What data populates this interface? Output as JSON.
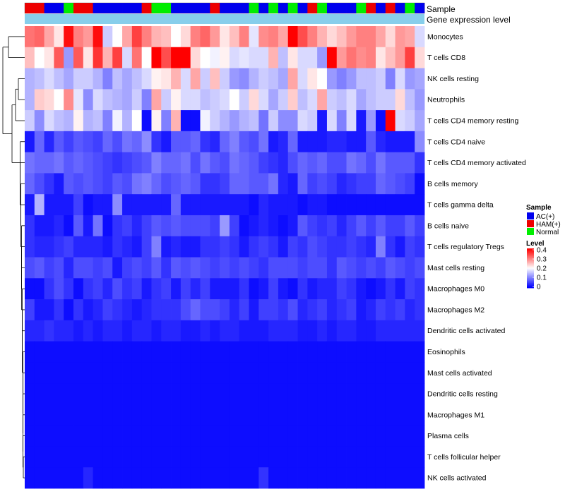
{
  "chart_data": {
    "type": "heatmap",
    "title": "",
    "annotations": {
      "sample_label": "Sample",
      "expression_label": "Gene expression level",
      "sample_groups": [
        "HAM(+)",
        "HAM(+)",
        "AC(+)",
        "AC(+)",
        "Normal",
        "HAM(+)",
        "HAM(+)",
        "AC(+)",
        "AC(+)",
        "AC(+)",
        "AC(+)",
        "AC(+)",
        "HAM(+)",
        "Normal",
        "Normal",
        "AC(+)",
        "AC(+)",
        "AC(+)",
        "AC(+)",
        "HAM(+)",
        "AC(+)",
        "AC(+)",
        "AC(+)",
        "Normal",
        "AC(+)",
        "Normal",
        "AC(+)",
        "Normal",
        "AC(+)",
        "HAM(+)",
        "Normal",
        "AC(+)",
        "AC(+)",
        "AC(+)",
        "Normal",
        "HAM(+)",
        "AC(+)",
        "HAM(+)",
        "AC(+)",
        "Normal",
        "AC(+)"
      ]
    },
    "rows": [
      "Monocytes",
      "T cells CD8",
      "NK cells resting",
      "Neutrophils",
      "T cells CD4 memory resting",
      "T cells CD4 naive",
      "T cells CD4 memory activated",
      "B cells memory",
      "T cells gamma delta",
      "B cells naive",
      "T cells regulatory  Tregs",
      "Mast cells resting",
      "Macrophages M0",
      "Macrophages M2",
      "Dendritic cells activated",
      "Eosinophils",
      "Mast cells activated",
      "Dendritic cells resting",
      "Macrophages M1",
      "Plasma cells",
      "T cells follicular helper",
      "NK cells activated"
    ],
    "values": [
      [
        0.31,
        0.32,
        0.27,
        0.22,
        0.39,
        0.3,
        0.28,
        0.39,
        0.16,
        0.2,
        0.27,
        0.35,
        0.3,
        0.26,
        0.25,
        0.2,
        0.23,
        0.3,
        0.32,
        0.28,
        0.22,
        0.25,
        0.3,
        0.18,
        0.29,
        0.3,
        0.27,
        0.4,
        0.34,
        0.3,
        0.26,
        0.23,
        0.25,
        0.28,
        0.3,
        0.3,
        0.27,
        0.23,
        0.28,
        0.27,
        0.17
      ],
      [
        0.25,
        0.2,
        0.22,
        0.33,
        0.12,
        0.33,
        0.22,
        0.36,
        0.26,
        0.35,
        0.17,
        0.31,
        0.2,
        0.4,
        0.34,
        0.41,
        0.41,
        0.23,
        0.2,
        0.19,
        0.21,
        0.17,
        0.18,
        0.17,
        0.17,
        0.26,
        0.15,
        0.22,
        0.17,
        0.17,
        0.12,
        0.4,
        0.28,
        0.31,
        0.29,
        0.3,
        0.22,
        0.25,
        0.28,
        0.35,
        0.23
      ],
      [
        0.14,
        0.15,
        0.17,
        0.15,
        0.13,
        0.16,
        0.16,
        0.14,
        0.1,
        0.15,
        0.13,
        0.15,
        0.17,
        0.21,
        0.22,
        0.26,
        0.17,
        0.27,
        0.16,
        0.25,
        0.16,
        0.12,
        0.11,
        0.14,
        0.16,
        0.15,
        0.13,
        0.27,
        0.17,
        0.22,
        0.2,
        0.12,
        0.1,
        0.12,
        0.15,
        0.15,
        0.16,
        0.1,
        0.17,
        0.12,
        0.13
      ],
      [
        0.14,
        0.24,
        0.23,
        0.2,
        0.29,
        0.18,
        0.11,
        0.17,
        0.15,
        0.14,
        0.13,
        0.16,
        0.1,
        0.27,
        0.16,
        0.21,
        0.17,
        0.17,
        0.15,
        0.16,
        0.17,
        0.2,
        0.16,
        0.23,
        0.17,
        0.13,
        0.16,
        0.24,
        0.15,
        0.17,
        0.27,
        0.16,
        0.15,
        0.17,
        0.13,
        0.15,
        0.16,
        0.16,
        0.23,
        0.15,
        0.12
      ],
      [
        0.16,
        0.11,
        0.17,
        0.15,
        0.14,
        0.21,
        0.14,
        0.15,
        0.1,
        0.19,
        0.14,
        0.2,
        0.01,
        0.21,
        0.1,
        0.26,
        0.01,
        0.01,
        0.19,
        0.16,
        0.14,
        0.12,
        0.14,
        0.15,
        0.09,
        0.16,
        0.11,
        0.11,
        0.17,
        0.16,
        0.02,
        0.17,
        0.1,
        0.17,
        0.02,
        0.12,
        0.01,
        0.4,
        0.17,
        0.16,
        0.13
      ],
      [
        0.02,
        0.08,
        0.03,
        0.07,
        0.05,
        0.07,
        0.06,
        0.05,
        0.08,
        0.06,
        0.09,
        0.08,
        0.11,
        0.04,
        0.02,
        0.07,
        0.07,
        0.08,
        0.04,
        0.03,
        0.08,
        0.1,
        0.07,
        0.06,
        0.09,
        0.02,
        0.03,
        0.08,
        0.02,
        0.02,
        0.02,
        0.03,
        0.03,
        0.02,
        0.02,
        0.07,
        0.03,
        0.02,
        0.02,
        0.02,
        0.11
      ],
      [
        0.09,
        0.08,
        0.08,
        0.09,
        0.07,
        0.08,
        0.07,
        0.06,
        0.05,
        0.04,
        0.05,
        0.06,
        0.07,
        0.1,
        0.08,
        0.08,
        0.09,
        0.06,
        0.09,
        0.07,
        0.06,
        0.09,
        0.08,
        0.07,
        0.05,
        0.04,
        0.03,
        0.06,
        0.08,
        0.07,
        0.08,
        0.06,
        0.06,
        0.09,
        0.08,
        0.06,
        0.09,
        0.07,
        0.07,
        0.07,
        0.04
      ],
      [
        0.08,
        0.06,
        0.04,
        0.02,
        0.07,
        0.06,
        0.07,
        0.06,
        0.05,
        0.07,
        0.06,
        0.09,
        0.1,
        0.08,
        0.06,
        0.07,
        0.08,
        0.07,
        0.04,
        0.04,
        0.05,
        0.08,
        0.08,
        0.07,
        0.07,
        0.09,
        0.03,
        0.02,
        0.08,
        0.05,
        0.06,
        0.05,
        0.03,
        0.04,
        0.05,
        0.05,
        0.08,
        0.07,
        0.06,
        0.05,
        0.01
      ],
      [
        0.02,
        0.14,
        0.02,
        0.02,
        0.02,
        0.05,
        0.01,
        0.02,
        0.02,
        0.11,
        0.02,
        0.02,
        0.02,
        0.02,
        0.02,
        0.08,
        0.02,
        0.02,
        0.02,
        0.02,
        0.02,
        0.02,
        0.02,
        0.01,
        0.03,
        0.02,
        0.02,
        0.02,
        0.01,
        0.02,
        0.02,
        0.01,
        0.01,
        0.01,
        0.01,
        0.01,
        0.01,
        0.01,
        0.01,
        0.01,
        0.01
      ],
      [
        0.04,
        0.02,
        0.02,
        0.03,
        0.01,
        0.07,
        0.02,
        0.09,
        0.01,
        0.04,
        0.05,
        0.03,
        0.05,
        0.07,
        0.06,
        0.07,
        0.06,
        0.06,
        0.06,
        0.05,
        0.12,
        0.05,
        0.01,
        0.02,
        0.03,
        0.02,
        0.01,
        0.02,
        0.07,
        0.05,
        0.04,
        0.05,
        0.03,
        0.05,
        0.07,
        0.05,
        0.07,
        0.05,
        0.05,
        0.07,
        0.05
      ],
      [
        0.04,
        0.03,
        0.03,
        0.04,
        0.05,
        0.03,
        0.03,
        0.03,
        0.02,
        0.04,
        0.03,
        0.02,
        0.05,
        0.1,
        0.02,
        0.03,
        0.02,
        0.02,
        0.04,
        0.04,
        0.05,
        0.04,
        0.02,
        0.04,
        0.05,
        0.04,
        0.02,
        0.05,
        0.04,
        0.06,
        0.05,
        0.04,
        0.04,
        0.05,
        0.04,
        0.03,
        0.1,
        0.04,
        0.02,
        0.05,
        0.04
      ],
      [
        0.06,
        0.07,
        0.05,
        0.06,
        0.03,
        0.06,
        0.06,
        0.05,
        0.06,
        0.02,
        0.05,
        0.06,
        0.05,
        0.07,
        0.04,
        0.07,
        0.06,
        0.07,
        0.06,
        0.05,
        0.06,
        0.05,
        0.06,
        0.05,
        0.04,
        0.06,
        0.06,
        0.06,
        0.05,
        0.06,
        0.06,
        0.04,
        0.07,
        0.06,
        0.05,
        0.06,
        0.05,
        0.07,
        0.06,
        0.05,
        0.06
      ],
      [
        0.01,
        0.01,
        0.04,
        0.06,
        0.04,
        0.01,
        0.04,
        0.05,
        0.03,
        0.06,
        0.04,
        0.05,
        0.02,
        0.04,
        0.05,
        0.02,
        0.05,
        0.03,
        0.05,
        0.02,
        0.02,
        0.02,
        0.04,
        0.01,
        0.02,
        0.05,
        0.02,
        0.01,
        0.04,
        0.02,
        0.03,
        0.03,
        0.05,
        0.04,
        0.02,
        0.01,
        0.02,
        0.04,
        0.02,
        0.05,
        0.04
      ],
      [
        0.05,
        0.02,
        0.02,
        0.04,
        0.01,
        0.04,
        0.02,
        0.03,
        0.05,
        0.04,
        0.03,
        0.02,
        0.03,
        0.04,
        0.04,
        0.04,
        0.06,
        0.08,
        0.06,
        0.06,
        0.05,
        0.03,
        0.05,
        0.02,
        0.05,
        0.05,
        0.04,
        0.06,
        0.03,
        0.04,
        0.05,
        0.03,
        0.04,
        0.05,
        0.02,
        0.03,
        0.05,
        0.04,
        0.05,
        0.03,
        0.04
      ],
      [
        0.03,
        0.03,
        0.04,
        0.03,
        0.03,
        0.02,
        0.03,
        0.02,
        0.03,
        0.03,
        0.02,
        0.03,
        0.03,
        0.02,
        0.03,
        0.03,
        0.02,
        0.02,
        0.03,
        0.02,
        0.03,
        0.03,
        0.02,
        0.02,
        0.02,
        0.03,
        0.03,
        0.03,
        0.02,
        0.02,
        0.03,
        0.02,
        0.03,
        0.03,
        0.02,
        0.02,
        0.03,
        0.03,
        0.03,
        0.03,
        0.03
      ],
      [
        0.01,
        0.01,
        0.01,
        0.01,
        0.01,
        0.01,
        0.01,
        0.01,
        0.01,
        0.01,
        0.01,
        0.01,
        0.01,
        0.01,
        0.01,
        0.01,
        0.01,
        0.01,
        0.01,
        0.01,
        0.01,
        0.01,
        0.01,
        0.01,
        0.01,
        0.01,
        0.01,
        0.01,
        0.01,
        0.01,
        0.01,
        0.01,
        0.01,
        0.01,
        0.01,
        0.01,
        0.01,
        0.01,
        0.01,
        0.01,
        0.01
      ],
      [
        0.01,
        0.01,
        0.01,
        0.01,
        0.01,
        0.01,
        0.01,
        0.01,
        0.01,
        0.01,
        0.01,
        0.01,
        0.01,
        0.01,
        0.01,
        0.01,
        0.01,
        0.01,
        0.01,
        0.01,
        0.01,
        0.01,
        0.01,
        0.01,
        0.01,
        0.01,
        0.01,
        0.01,
        0.01,
        0.01,
        0.01,
        0.01,
        0.01,
        0.01,
        0.01,
        0.01,
        0.01,
        0.01,
        0.01,
        0.01,
        0.01
      ],
      [
        0.01,
        0.01,
        0.01,
        0.01,
        0.01,
        0.01,
        0.01,
        0.01,
        0.01,
        0.01,
        0.01,
        0.01,
        0.01,
        0.01,
        0.01,
        0.01,
        0.01,
        0.01,
        0.01,
        0.01,
        0.01,
        0.01,
        0.01,
        0.01,
        0.01,
        0.01,
        0.01,
        0.01,
        0.01,
        0.01,
        0.01,
        0.01,
        0.01,
        0.01,
        0.01,
        0.01,
        0.01,
        0.01,
        0.01,
        0.01,
        0.01
      ],
      [
        0.01,
        0.01,
        0.01,
        0.01,
        0.01,
        0.01,
        0.01,
        0.01,
        0.01,
        0.01,
        0.01,
        0.01,
        0.01,
        0.01,
        0.01,
        0.01,
        0.01,
        0.01,
        0.01,
        0.01,
        0.01,
        0.01,
        0.01,
        0.01,
        0.01,
        0.01,
        0.01,
        0.01,
        0.01,
        0.01,
        0.01,
        0.01,
        0.01,
        0.01,
        0.01,
        0.01,
        0.01,
        0.01,
        0.01,
        0.01,
        0.01
      ],
      [
        0.01,
        0.01,
        0.01,
        0.01,
        0.01,
        0.01,
        0.01,
        0.01,
        0.01,
        0.01,
        0.01,
        0.01,
        0.01,
        0.01,
        0.01,
        0.01,
        0.01,
        0.01,
        0.01,
        0.01,
        0.01,
        0.01,
        0.01,
        0.01,
        0.01,
        0.01,
        0.01,
        0.01,
        0.01,
        0.01,
        0.01,
        0.01,
        0.01,
        0.01,
        0.01,
        0.01,
        0.01,
        0.01,
        0.01,
        0.01,
        0.01
      ],
      [
        0.01,
        0.01,
        0.01,
        0.01,
        0.01,
        0.01,
        0.01,
        0.01,
        0.01,
        0.01,
        0.01,
        0.01,
        0.01,
        0.01,
        0.01,
        0.01,
        0.01,
        0.01,
        0.01,
        0.01,
        0.01,
        0.01,
        0.01,
        0.01,
        0.01,
        0.01,
        0.01,
        0.01,
        0.01,
        0.01,
        0.01,
        0.01,
        0.01,
        0.01,
        0.01,
        0.01,
        0.01,
        0.01,
        0.01,
        0.01,
        0.01
      ],
      [
        0.01,
        0.01,
        0.01,
        0.01,
        0.01,
        0.01,
        0.03,
        0.01,
        0.01,
        0.01,
        0.01,
        0.01,
        0.01,
        0.01,
        0.01,
        0.01,
        0.01,
        0.01,
        0.01,
        0.01,
        0.01,
        0.01,
        0.01,
        0.01,
        0.04,
        0.01,
        0.01,
        0.01,
        0.01,
        0.01,
        0.01,
        0.01,
        0.01,
        0.01,
        0.01,
        0.01,
        0.01,
        0.01,
        0.01,
        0.01,
        0.01
      ]
    ],
    "legend": {
      "sample_title": "Sample",
      "sample_entries": [
        {
          "label": "AC(+)",
          "color": "#0000ee"
        },
        {
          "label": "HAM(+)",
          "color": "#ee0000"
        },
        {
          "label": "Normal",
          "color": "#00ee00"
        }
      ],
      "level_title": "Level",
      "level_ticks": [
        "0.4",
        "0.3",
        "0.2",
        "0.1",
        "0"
      ],
      "level_range": [
        0,
        0.4
      ]
    },
    "colors": {
      "low": "#0000ff",
      "mid": "#ffffff",
      "high": "#ff0000",
      "expression_bar": "#87ceeb"
    }
  }
}
